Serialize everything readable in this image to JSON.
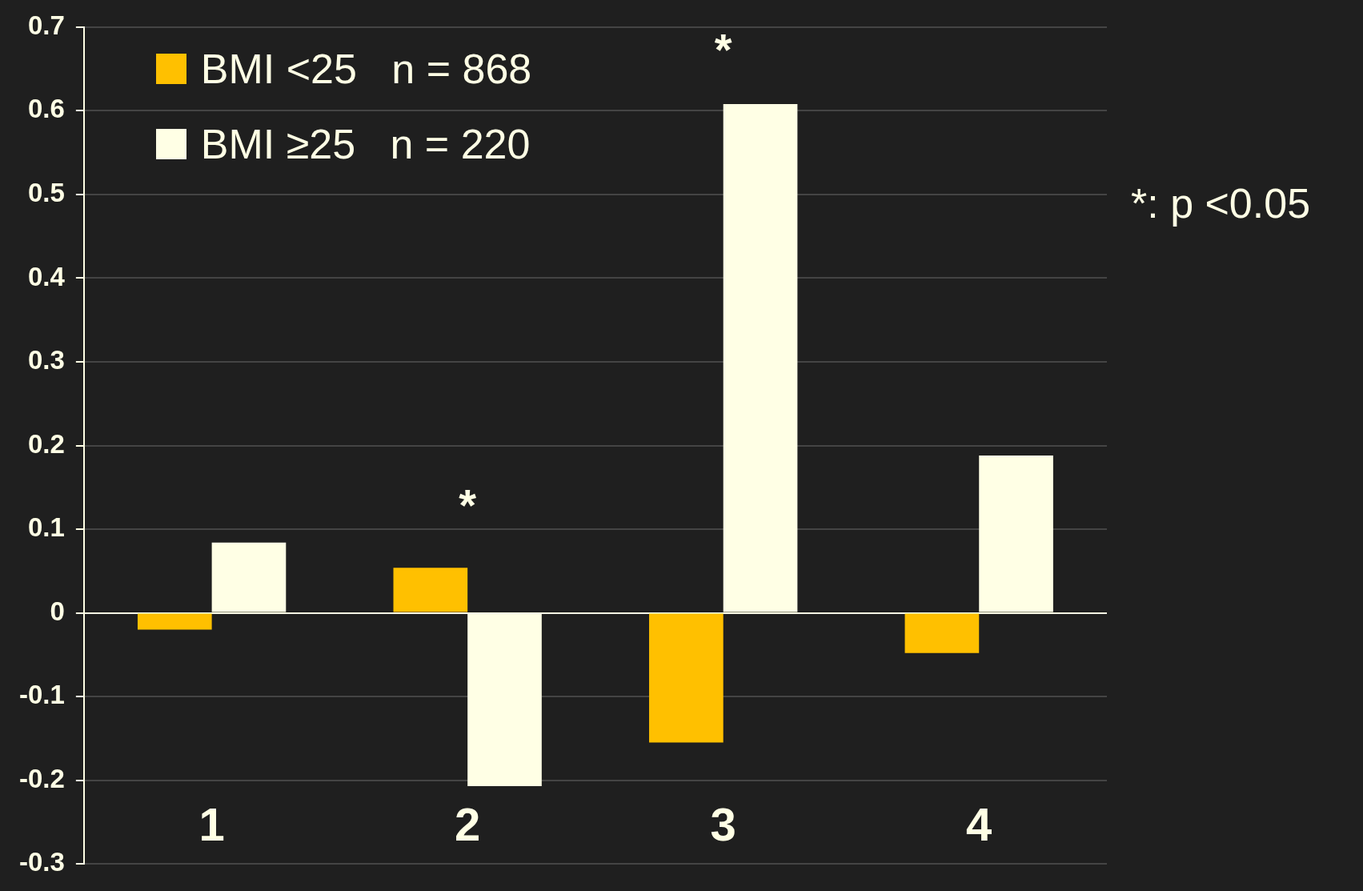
{
  "chart_data": {
    "type": "bar",
    "categories": [
      "1",
      "2",
      "3",
      "4"
    ],
    "series": [
      {
        "name": "BMI <25   n = 868",
        "color": "#ffc000",
        "values": [
          -0.02,
          0.054,
          -0.155,
          -0.048
        ]
      },
      {
        "name": "BMI ≥25   n = 220",
        "color": "#ffffe5",
        "values": [
          0.084,
          -0.207,
          0.608,
          0.188
        ]
      }
    ],
    "ylim": [
      -0.3,
      0.7
    ],
    "yticks": [
      -0.3,
      -0.2,
      -0.1,
      0,
      0.1,
      0.2,
      0.3,
      0.4,
      0.5,
      0.6,
      0.7
    ],
    "grid": "y",
    "legend": "top left",
    "annotations": [
      "*",
      "*",
      "*: p <0.05"
    ]
  }
}
